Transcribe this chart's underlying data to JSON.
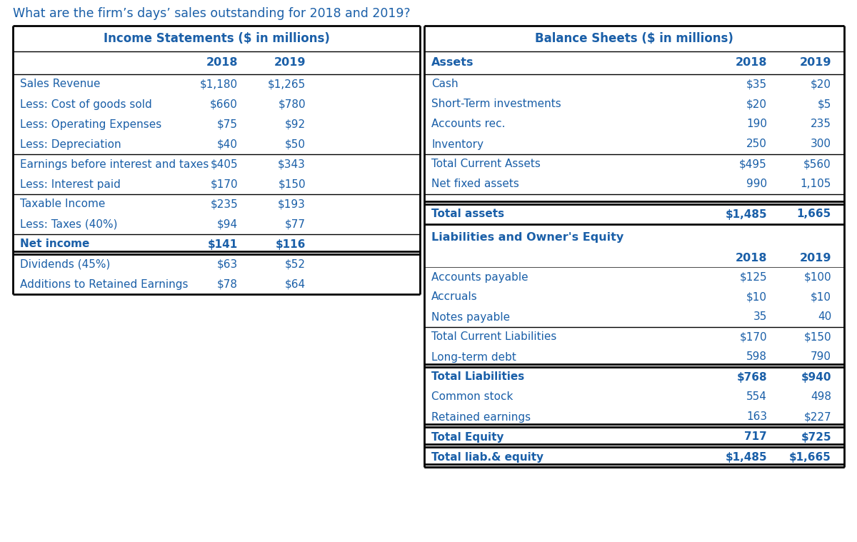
{
  "title": "What are the firm’s days’ sales outstanding for 2018 and 2019?",
  "blue": "#1a5fa8",
  "background": "#ffffff",
  "left_header": "Income Statements ($ in millions)",
  "right_header": "Balance Sheets ($ in millions)",
  "income_rows": [
    {
      "label": "Sales Revenue",
      "v2018": "$1,180",
      "v2019": "$1,265",
      "bold": false,
      "sep_above": false,
      "double_below": false
    },
    {
      "label": "Less: Cost of goods sold",
      "v2018": "$660",
      "v2019": "$780",
      "bold": false,
      "sep_above": false,
      "double_below": false
    },
    {
      "label": "Less: Operating Expenses",
      "v2018": "$75",
      "v2019": "$92",
      "bold": false,
      "sep_above": false,
      "double_below": false
    },
    {
      "label": "Less: Depreciation",
      "v2018": "$40",
      "v2019": "$50",
      "bold": false,
      "sep_above": false,
      "double_below": false
    },
    {
      "label": "Earnings before interest and taxes",
      "v2018": "$405",
      "v2019": "$343",
      "bold": false,
      "sep_above": true,
      "double_below": false
    },
    {
      "label": "Less: Interest paid",
      "v2018": "$170",
      "v2019": "$150",
      "bold": false,
      "sep_above": false,
      "double_below": false
    },
    {
      "label": "Taxable Income",
      "v2018": "$235",
      "v2019": "$193",
      "bold": false,
      "sep_above": true,
      "double_below": false
    },
    {
      "label": "Less: Taxes (40%)",
      "v2018": "$94",
      "v2019": "$77",
      "bold": false,
      "sep_above": false,
      "double_below": false
    },
    {
      "label": "Net income",
      "v2018": "$141",
      "v2019": "$116",
      "bold": true,
      "sep_above": true,
      "double_below": true
    },
    {
      "label": "Dividends (45%)",
      "v2018": "$63",
      "v2019": "$52",
      "bold": false,
      "sep_above": false,
      "double_below": false
    },
    {
      "label": "Additions to Retained Earnings",
      "v2018": "$78",
      "v2019": "$64",
      "bold": false,
      "sep_above": false,
      "double_below": false
    }
  ],
  "assets_rows": [
    {
      "label": "Cash",
      "v2018": "$35",
      "v2019": "$20",
      "bold": false,
      "sep_above": false,
      "double_below": false
    },
    {
      "label": "Short-Term investments",
      "v2018": "$20",
      "v2019": "$5",
      "bold": false,
      "sep_above": false,
      "double_below": false
    },
    {
      "label": "Accounts rec.",
      "v2018": "190",
      "v2019": "235",
      "bold": false,
      "sep_above": false,
      "double_below": false
    },
    {
      "label": "Inventory",
      "v2018": "250",
      "v2019": "300",
      "bold": false,
      "sep_above": false,
      "double_below": false
    },
    {
      "label": "Total Current Assets",
      "v2018": "$495",
      "v2019": "$560",
      "bold": false,
      "sep_above": true,
      "double_below": false
    },
    {
      "label": "Net fixed assets",
      "v2018": "990",
      "v2019": "1,105",
      "bold": false,
      "sep_above": false,
      "double_below": false
    }
  ],
  "total_assets_row": {
    "label": "Total assets",
    "v2018": "$1,485",
    "v2019": "1,665"
  },
  "liab_header": "Liabilities and Owner's Equity",
  "liab_rows": [
    {
      "label": "Accounts payable",
      "v2018": "$125",
      "v2019": "$100",
      "bold": false,
      "sep_above": false,
      "double_below": false
    },
    {
      "label": "Accruals",
      "v2018": "$10",
      "v2019": "$10",
      "bold": false,
      "sep_above": false,
      "double_below": false
    },
    {
      "label": "Notes payable",
      "v2018": "35",
      "v2019": "40",
      "bold": false,
      "sep_above": false,
      "double_below": false
    },
    {
      "label": "Total Current Liabilities",
      "v2018": "$170",
      "v2019": "$150",
      "bold": false,
      "sep_above": true,
      "double_below": false
    },
    {
      "label": "Long-term debt",
      "v2018": "598",
      "v2019": "790",
      "bold": false,
      "sep_above": false,
      "double_below": false
    },
    {
      "label": "Total Liabilities",
      "v2018": "$768",
      "v2019": "$940",
      "bold": true,
      "sep_above": true,
      "double_below": false
    },
    {
      "label": "Common stock",
      "v2018": "554",
      "v2019": "498",
      "bold": false,
      "sep_above": false,
      "double_below": false
    },
    {
      "label": "Retained earnings",
      "v2018": "163",
      "v2019": "$227",
      "bold": false,
      "sep_above": false,
      "double_below": false
    },
    {
      "label": "Total Equity",
      "v2018": "717",
      "v2019": "$725",
      "bold": true,
      "sep_above": true,
      "double_below": false
    },
    {
      "label": "Total liab.& equity",
      "v2018": "$1,485",
      "v2019": "$1,665",
      "bold": true,
      "sep_above": true,
      "double_below": false
    }
  ]
}
